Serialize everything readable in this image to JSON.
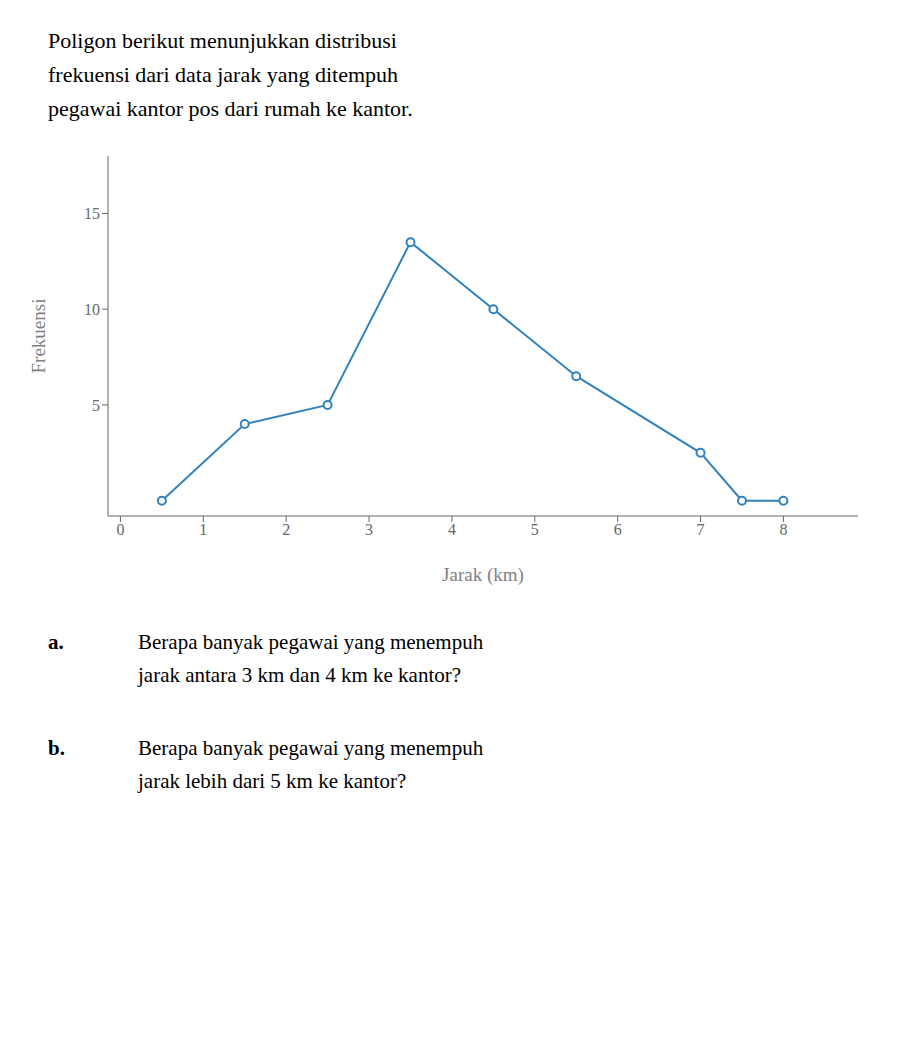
{
  "chart_data": {
    "type": "line",
    "title": [
      "Poligon berikut menunjukkan distribusi",
      "frekuensi dari data jarak yang ditempuh",
      "pegawai kantor pos dari rumah ke kantor."
    ],
    "x": [
      0.5,
      1.5,
      2.5,
      3.5,
      4.5,
      5.5,
      7.0,
      7.5,
      8.0
    ],
    "values": [
      0,
      4,
      5,
      13.5,
      10,
      6.5,
      2.5,
      0,
      0
    ],
    "xlabel": "Jarak (km)",
    "ylabel": "Frekuensi",
    "xlim": [
      -0.15,
      8.9
    ],
    "ylim": [
      -0.8,
      18.0
    ],
    "xticks": [
      0,
      1,
      2,
      3,
      4,
      5,
      6,
      7,
      8
    ],
    "yticks": [
      5,
      10,
      15
    ],
    "marker": "o",
    "grid": false,
    "annotations": [
      {
        "label": "a.",
        "text": "Berapa banyak pegawai yang menempuh\njarak antara 3 km dan 4 km ke kantor?"
      },
      {
        "label": "b.",
        "text": "Berapa banyak pegawai yang menempuh\njarak lebih dari 5 km ke kantor?"
      }
    ]
  }
}
